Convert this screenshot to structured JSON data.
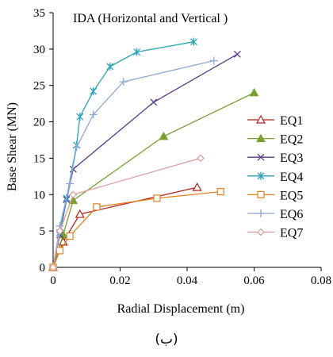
{
  "chart_data": {
    "type": "line",
    "title": "IDA (Horizontal and Vertical )",
    "xlabel": "Radial Displacement (m)",
    "ylabel": "Base Shear (MN)",
    "xlim": [
      0,
      0.08
    ],
    "ylim": [
      0,
      35
    ],
    "xticks": [
      "0",
      "0.02",
      "0.04",
      "0.06",
      "0.08"
    ],
    "yticks": [
      "0",
      "5",
      "10",
      "15",
      "20",
      "25",
      "30",
      "35"
    ],
    "grid": false,
    "legend_position": "right",
    "series": [
      {
        "name": "EQ1",
        "color": "#b22222",
        "marker": "triangle-open",
        "x": [
          0,
          0.003,
          0.008,
          0.043
        ],
        "y": [
          0,
          3.5,
          7.3,
          11
        ]
      },
      {
        "name": "EQ2",
        "color": "#77a02e",
        "marker": "triangle-filled",
        "x": [
          0,
          0.003,
          0.006,
          0.033,
          0.06
        ],
        "y": [
          0,
          4.5,
          9.2,
          18,
          24
        ]
      },
      {
        "name": "EQ3",
        "color": "#5b3b8c",
        "marker": "x",
        "x": [
          0,
          0.002,
          0.004,
          0.006,
          0.03,
          0.055
        ],
        "y": [
          0,
          4.5,
          9.3,
          13.5,
          22.7,
          29.3
        ]
      },
      {
        "name": "EQ4",
        "color": "#2aa3b8",
        "marker": "asterisk",
        "x": [
          0,
          0.002,
          0.004,
          0.007,
          0.008,
          0.012,
          0.017,
          0.025,
          0.042
        ],
        "y": [
          0,
          4.8,
          9.5,
          16.8,
          20.7,
          24.2,
          27.6,
          29.6,
          31
        ]
      },
      {
        "name": "EQ5",
        "color": "#e37f1c",
        "marker": "square-open",
        "x": [
          0,
          0.002,
          0.005,
          0.013,
          0.031,
          0.05
        ],
        "y": [
          0,
          2.3,
          4.3,
          8.3,
          9.5,
          10.4
        ]
      },
      {
        "name": "EQ6",
        "color": "#8ea8d8",
        "marker": "plus",
        "x": [
          0,
          0.002,
          0.005,
          0.007,
          0.012,
          0.021,
          0.048
        ],
        "y": [
          0,
          5.7,
          11.5,
          16.5,
          21,
          25.5,
          28.4
        ]
      },
      {
        "name": "EQ7",
        "color": "#e29ba0",
        "marker": "diamond-open",
        "x": [
          0,
          0.002,
          0.006,
          0.044
        ],
        "y": [
          0,
          5,
          10,
          15
        ]
      }
    ]
  },
  "caption": "(ب)"
}
